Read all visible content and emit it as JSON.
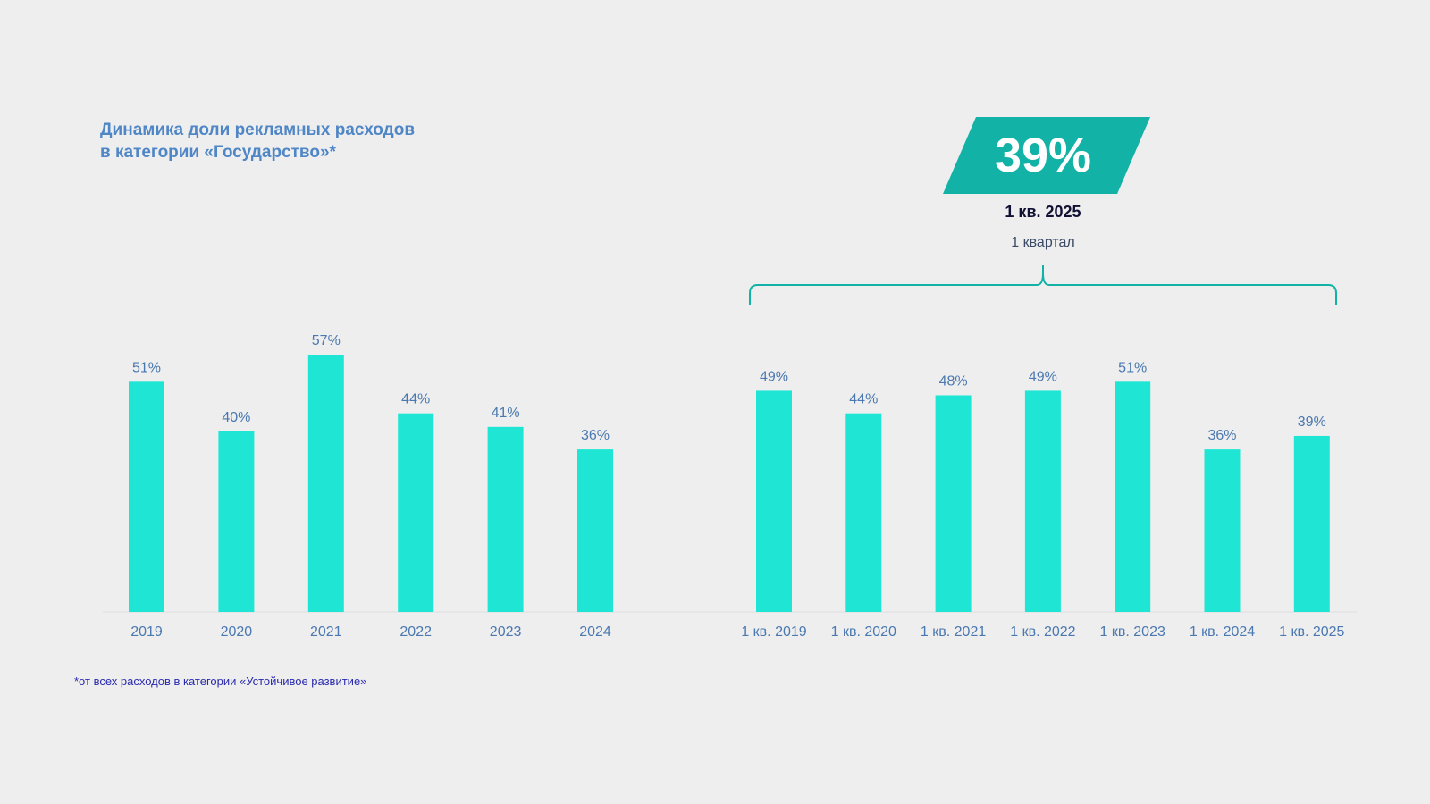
{
  "page": {
    "title_line1": "Динамика доли рекламных расходов",
    "title_line2": "в категории «Государство»*",
    "footnote": "*от всех расходов в категории «Устойчивое развитие»"
  },
  "colors": {
    "bar": "#1fe6d4",
    "callout_bg": "#12b3a6",
    "bracket": "#12b3a6",
    "label": "#4a78b0",
    "title": "#4f86c6",
    "footnote": "#2a2ab0",
    "background": "#eeeeee"
  },
  "callout": {
    "value": "39%",
    "period": "1 кв. 2025",
    "caption": "1 квартал"
  },
  "chart_data": [
    {
      "type": "bar",
      "categories": [
        "2019",
        "2020",
        "2021",
        "2022",
        "2023",
        "2024"
      ],
      "values": [
        51,
        40,
        57,
        44,
        41,
        36
      ],
      "value_labels": [
        "51%",
        "40%",
        "57%",
        "44%",
        "41%",
        "36%"
      ],
      "title": "",
      "xlabel": "",
      "ylabel": "",
      "ylim": [
        0,
        60
      ],
      "unit": "%",
      "grid": false
    },
    {
      "type": "bar",
      "categories": [
        "1 кв. 2019",
        "1 кв. 2020",
        "1 кв. 2021",
        "1 кв. 2022",
        "1 кв. 2023",
        "1 кв. 2024",
        "1 кв. 2025"
      ],
      "values": [
        49,
        44,
        48,
        49,
        51,
        36,
        39
      ],
      "value_labels": [
        "49%",
        "44%",
        "48%",
        "49%",
        "51%",
        "36%",
        "39%"
      ],
      "title": "",
      "xlabel": "",
      "ylabel": "",
      "ylim": [
        0,
        60
      ],
      "unit": "%",
      "grid": false
    }
  ]
}
